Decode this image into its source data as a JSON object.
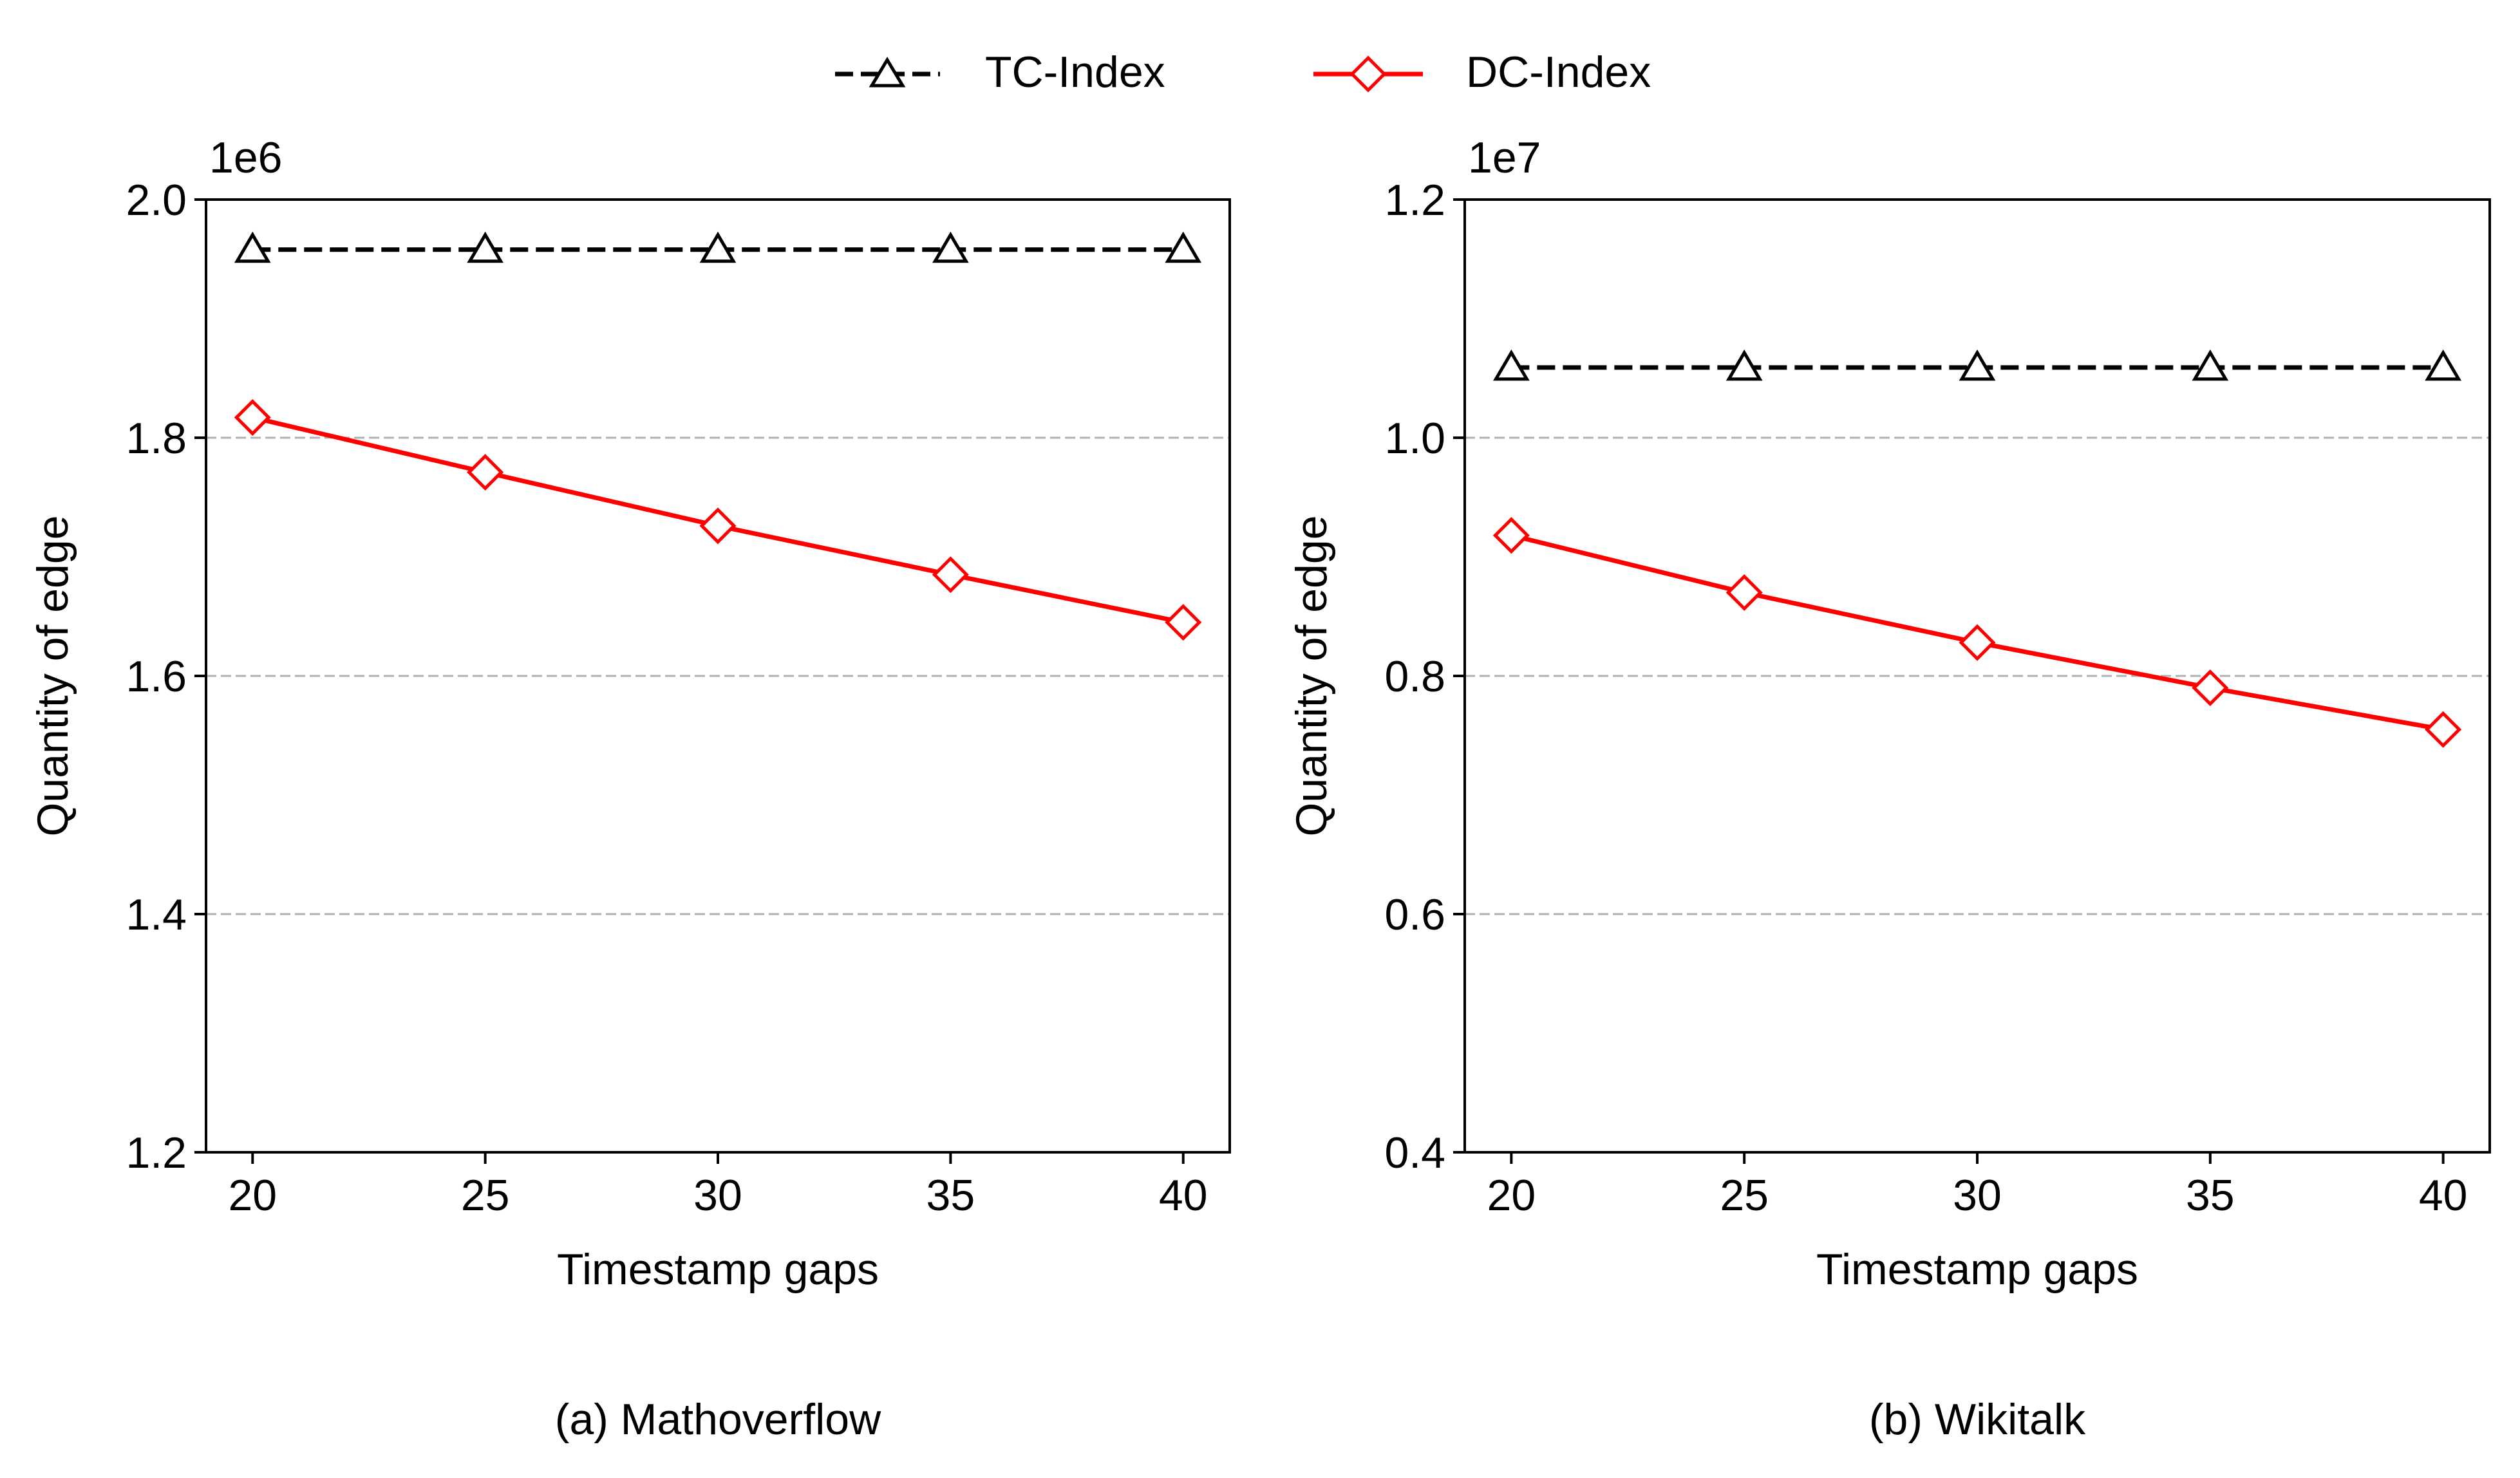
{
  "legend": {
    "entries": [
      {
        "label": "TC-Index",
        "color": "#000000",
        "line": "dashed",
        "marker": "triangle-icon"
      },
      {
        "label": "DC-Index",
        "color": "#ff0000",
        "line": "solid",
        "marker": "diamond-icon"
      }
    ],
    "placement": "top-center"
  },
  "chart_data": [
    {
      "type": "line",
      "caption": "(a) Mathoverflow",
      "xlabel": "Timestamp gaps",
      "ylabel": "Quantity of edge",
      "offset_label": "1e6",
      "x": [
        20,
        25,
        30,
        35,
        40
      ],
      "x_ticks": [
        "20",
        "25",
        "30",
        "35",
        "40"
      ],
      "xlim": [
        19,
        41
      ],
      "ylim": [
        1.2,
        2.0
      ],
      "y_ticks": [
        1.2,
        1.4,
        1.6,
        1.8,
        2.0
      ],
      "y_tick_labels": [
        "1.2",
        "1.4",
        "1.6",
        "1.8",
        "2.0"
      ],
      "grid": "horizontal dashed",
      "series": [
        {
          "name": "TC-Index",
          "values": [
            1.958,
            1.958,
            1.958,
            1.958,
            1.958
          ]
        },
        {
          "name": "DC-Index",
          "values": [
            1.817,
            1.771,
            1.726,
            1.685,
            1.645
          ]
        }
      ]
    },
    {
      "type": "line",
      "caption": "(b) Wikitalk",
      "xlabel": "Timestamp gaps",
      "ylabel": "Quantity of edge",
      "offset_label": "1e7",
      "x": [
        20,
        25,
        30,
        35,
        40
      ],
      "x_ticks": [
        "20",
        "25",
        "30",
        "35",
        "40"
      ],
      "xlim": [
        19,
        41
      ],
      "ylim": [
        0.4,
        1.2
      ],
      "y_ticks": [
        0.4,
        0.6,
        0.8,
        1.0,
        1.2
      ],
      "y_tick_labels": [
        "0.4",
        "0.6",
        "0.8",
        "1.0",
        "1.2"
      ],
      "grid": "horizontal dashed",
      "series": [
        {
          "name": "TC-Index",
          "values": [
            1.059,
            1.059,
            1.059,
            1.059,
            1.059
          ]
        },
        {
          "name": "DC-Index",
          "values": [
            0.918,
            0.87,
            0.828,
            0.79,
            0.755
          ]
        }
      ]
    }
  ]
}
